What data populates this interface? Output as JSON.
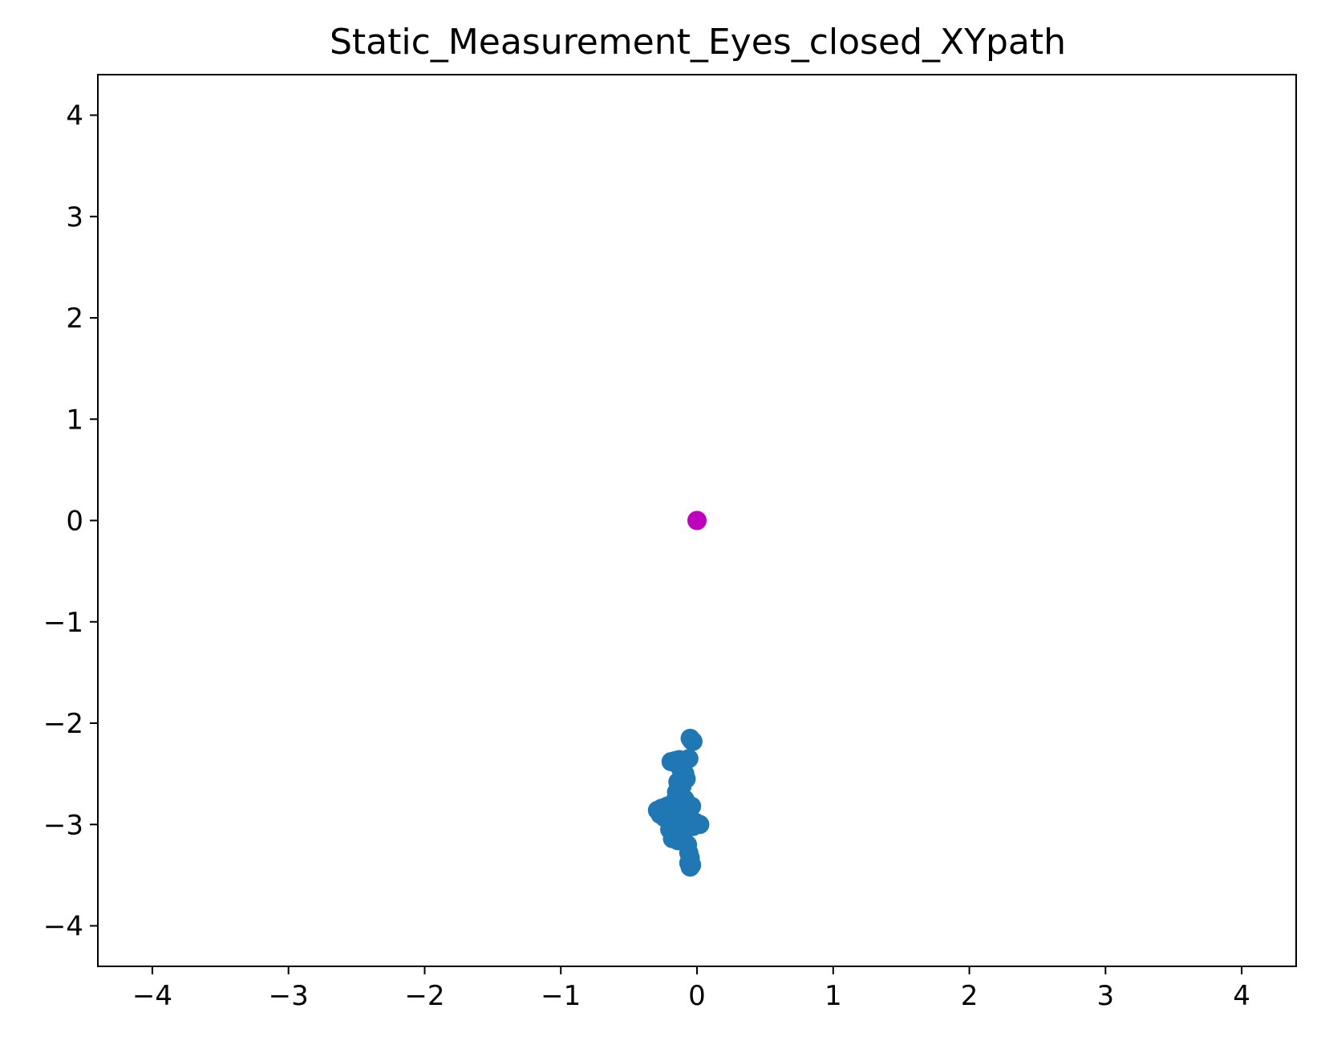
{
  "chart_data": {
    "type": "scatter",
    "title": "Static_Measurement_Eyes_closed_XYpath",
    "xlabel": "",
    "ylabel": "",
    "xlim": [
      -4.4,
      4.4
    ],
    "ylim": [
      -4.4,
      4.4
    ],
    "xticks": [
      -4,
      -3,
      -2,
      -1,
      0,
      1,
      2,
      3,
      4
    ],
    "yticks": [
      -4,
      -3,
      -2,
      -1,
      0,
      1,
      2,
      3,
      4
    ],
    "xtick_labels": [
      "−4",
      "−3",
      "−2",
      "−1",
      "0",
      "1",
      "2",
      "3",
      "4"
    ],
    "ytick_labels": [
      "−4",
      "−3",
      "−2",
      "−1",
      "0",
      "1",
      "2",
      "3",
      "4"
    ],
    "grid": false,
    "series": [
      {
        "color": "#1f77b4",
        "points": [
          [
            -0.04,
            -2.17
          ],
          [
            -0.03,
            -2.18
          ],
          [
            -0.05,
            -2.15
          ],
          [
            -0.19,
            -2.38
          ],
          [
            -0.16,
            -2.37
          ],
          [
            -0.13,
            -2.36
          ],
          [
            -0.1,
            -2.37
          ],
          [
            -0.06,
            -2.35
          ],
          [
            -0.12,
            -2.45
          ],
          [
            -0.09,
            -2.5
          ],
          [
            -0.08,
            -2.55
          ],
          [
            -0.14,
            -2.58
          ],
          [
            -0.11,
            -2.62
          ],
          [
            -0.15,
            -2.68
          ],
          [
            -0.12,
            -2.72
          ],
          [
            -0.09,
            -2.75
          ],
          [
            -0.17,
            -2.78
          ],
          [
            -0.13,
            -2.8
          ],
          [
            -0.22,
            -2.82
          ],
          [
            -0.26,
            -2.84
          ],
          [
            -0.29,
            -2.86
          ],
          [
            -0.27,
            -2.9
          ],
          [
            -0.24,
            -2.93
          ],
          [
            -0.19,
            -2.86
          ],
          [
            -0.15,
            -2.88
          ],
          [
            -0.11,
            -2.9
          ],
          [
            -0.07,
            -2.87
          ],
          [
            -0.04,
            -2.82
          ],
          [
            -0.08,
            -2.95
          ],
          [
            -0.05,
            -2.97
          ],
          [
            -0.01,
            -2.98
          ],
          [
            0.02,
            -3.0
          ],
          [
            -0.03,
            -3.02
          ],
          [
            -0.13,
            -2.98
          ],
          [
            -0.17,
            -3.02
          ],
          [
            -0.2,
            -3.05
          ],
          [
            -0.16,
            -3.1
          ],
          [
            -0.18,
            -3.14
          ],
          [
            -0.14,
            -3.16
          ],
          [
            -0.1,
            -3.15
          ],
          [
            -0.07,
            -3.2
          ],
          [
            -0.06,
            -3.28
          ],
          [
            -0.05,
            -3.33
          ],
          [
            -0.06,
            -3.38
          ],
          [
            -0.05,
            -3.42
          ],
          [
            -0.04,
            -3.4
          ],
          [
            -0.1,
            -3.05
          ],
          [
            -0.12,
            -2.92
          ]
        ]
      },
      {
        "color": "#bf00bf",
        "points": [
          [
            0.0,
            0.0
          ]
        ]
      }
    ]
  }
}
